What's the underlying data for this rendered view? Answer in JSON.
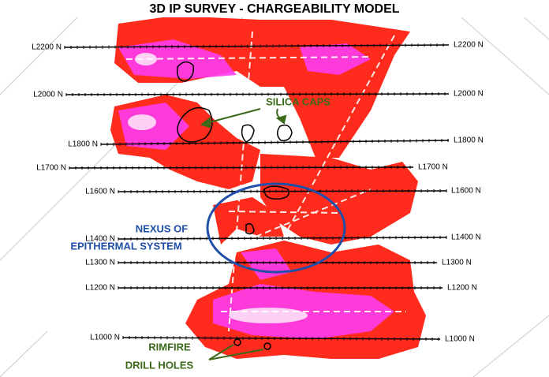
{
  "header": {
    "title": "3D IP SURVEY - CHARGEABILITY MODEL"
  },
  "survey_lines": [
    "L2200 N",
    "L2000 N",
    "L1800 N",
    "L1700 N",
    "L1600 N",
    "L1400 N",
    "L1300 N",
    "L1200 N",
    "L1000 N"
  ],
  "annotations": {
    "silica_caps": "SILICA CAPS",
    "nexus": [
      "NEXUS OF",
      "EPITHERMAL SYSTEM"
    ],
    "drill_holes": [
      "RIMFIRE",
      "DRILL HOLES"
    ]
  }
}
